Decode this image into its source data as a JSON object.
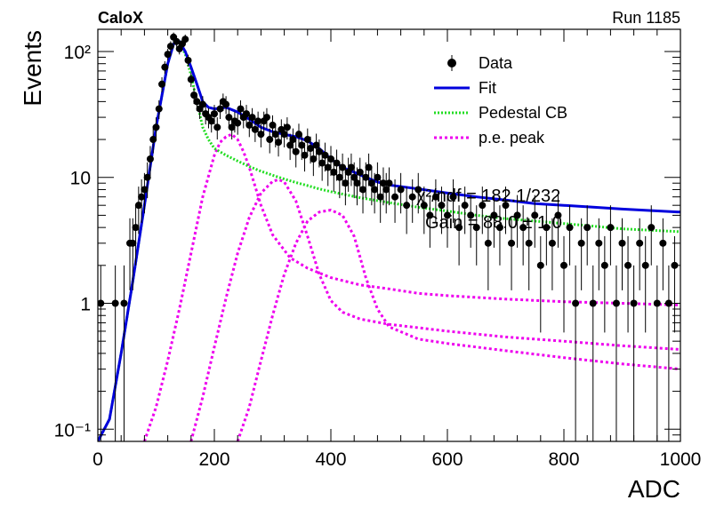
{
  "chart_data": {
    "type": "scatter",
    "title": "",
    "experiment_label": "CaloX",
    "run_label": "Run 1185",
    "xlabel": "ADC",
    "ylabel": "Events",
    "xlim": [
      0,
      1000
    ],
    "ylim": [
      0.08,
      150
    ],
    "yscale": "log",
    "grid": false,
    "legend_position": "top-right",
    "x_ticks": [
      0,
      200,
      400,
      600,
      800,
      1000
    ],
    "y_ticks": [
      {
        "value": 0.1,
        "label": "10⁻¹"
      },
      {
        "value": 1,
        "label": "1"
      },
      {
        "value": 10,
        "label": "10"
      },
      {
        "value": 100,
        "label": "10²"
      }
    ],
    "annotations": [
      "χ²/ndf = 182.1/232",
      "Gain = 88.0 ± 1.0"
    ],
    "colors": {
      "data": "#000000",
      "fit": "#0000dd",
      "pedestal": "#22dd22",
      "pe_peak": "#ee00ee"
    },
    "series": [
      {
        "name": "Data",
        "kind": "points",
        "x": [
          5,
          30,
          45,
          55,
          60,
          65,
          70,
          75,
          80,
          85,
          90,
          95,
          100,
          105,
          110,
          115,
          120,
          125,
          130,
          135,
          140,
          145,
          150,
          155,
          160,
          165,
          170,
          175,
          180,
          185,
          190,
          195,
          200,
          205,
          210,
          215,
          220,
          225,
          230,
          235,
          240,
          245,
          250,
          255,
          260,
          265,
          270,
          275,
          280,
          285,
          290,
          295,
          300,
          305,
          310,
          315,
          320,
          325,
          330,
          335,
          340,
          345,
          350,
          355,
          360,
          365,
          370,
          375,
          380,
          385,
          390,
          395,
          400,
          405,
          410,
          415,
          420,
          425,
          430,
          435,
          440,
          445,
          450,
          455,
          460,
          465,
          470,
          475,
          480,
          485,
          490,
          495,
          500,
          510,
          520,
          530,
          540,
          550,
          560,
          570,
          580,
          590,
          600,
          610,
          620,
          630,
          640,
          650,
          660,
          670,
          680,
          690,
          700,
          710,
          720,
          730,
          740,
          750,
          760,
          770,
          780,
          790,
          800,
          810,
          820,
          830,
          840,
          850,
          860,
          870,
          880,
          890,
          900,
          910,
          920,
          930,
          940,
          950,
          960,
          970,
          980,
          990
        ],
        "y": [
          1,
          1,
          1,
          3,
          3,
          4,
          6,
          7,
          8,
          10,
          14,
          20,
          25,
          35,
          55,
          75,
          95,
          110,
          130,
          120,
          105,
          115,
          125,
          85,
          60,
          45,
          40,
          35,
          38,
          32,
          30,
          28,
          32,
          25,
          35,
          40,
          38,
          30,
          25,
          28,
          27,
          35,
          30,
          32,
          26,
          30,
          24,
          28,
          22,
          28,
          30,
          20,
          26,
          22,
          19,
          24,
          22,
          25,
          18,
          20,
          16,
          22,
          18,
          15,
          20,
          17,
          14,
          18,
          16,
          13,
          15,
          12,
          14,
          11,
          13,
          10,
          12,
          9,
          11,
          12,
          10,
          9,
          11,
          8,
          10,
          12,
          9,
          8,
          10,
          7,
          9,
          8,
          9,
          7,
          8,
          6,
          7,
          8,
          6,
          5,
          7,
          6,
          5,
          7,
          4,
          6,
          5,
          4,
          6,
          3,
          5,
          4,
          6,
          3,
          5,
          4,
          3,
          5,
          2,
          4,
          3,
          5,
          2,
          4,
          1,
          3,
          4,
          1,
          3,
          2,
          4,
          1,
          3,
          2,
          1,
          3,
          2,
          4,
          1,
          3,
          1,
          2
        ]
      },
      {
        "name": "Fit",
        "kind": "line",
        "x": [
          0,
          20,
          40,
          60,
          80,
          100,
          120,
          130,
          140,
          150,
          160,
          170,
          180,
          190,
          200,
          220,
          240,
          260,
          280,
          300,
          320,
          340,
          360,
          380,
          400,
          420,
          440,
          460,
          480,
          500,
          550,
          600,
          650,
          700,
          750,
          800,
          850,
          900,
          950,
          1000
        ],
        "y": [
          0.08,
          0.12,
          0.4,
          1.5,
          6,
          25,
          80,
          115,
          120,
          100,
          75,
          55,
          40,
          36,
          35,
          36,
          33,
          29,
          25,
          23,
          22,
          21,
          19.5,
          17,
          14,
          12,
          11,
          10,
          9.2,
          8.7,
          8.1,
          7.5,
          7,
          6.6,
          6.2,
          6,
          5.8,
          5.6,
          5.45,
          5.3
        ]
      },
      {
        "name": "Pedestal CB",
        "kind": "line",
        "x": [
          0,
          20,
          40,
          60,
          80,
          100,
          120,
          130,
          140,
          150,
          160,
          170,
          180,
          190,
          200,
          220,
          240,
          260,
          280,
          300,
          320,
          340,
          360,
          380,
          400,
          450,
          500,
          550,
          600,
          650,
          700,
          750,
          800,
          850,
          900,
          950,
          1000
        ],
        "y": [
          0.08,
          0.12,
          0.4,
          1.5,
          6,
          25,
          80,
          115,
          120,
          95,
          65,
          40,
          25,
          20,
          17,
          15,
          13.5,
          12.2,
          11.2,
          10.4,
          9.7,
          9.1,
          8.6,
          8.1,
          7.7,
          6.9,
          6.3,
          5.8,
          5.4,
          5,
          4.7,
          4.5,
          4.3,
          4.1,
          3.9,
          3.8,
          3.7
        ]
      },
      {
        "name": "p.e. peak",
        "kind": "line",
        "x": [
          80,
          100,
          120,
          140,
          160,
          180,
          200,
          210,
          220,
          230,
          240,
          250,
          260,
          280,
          300,
          330,
          360,
          400,
          450,
          500,
          550,
          600,
          700,
          800,
          900,
          1000
        ],
        "y": [
          0.08,
          0.15,
          0.35,
          0.9,
          2.5,
          7,
          15,
          19,
          21,
          22,
          20,
          16,
          12,
          6,
          3.5,
          2.3,
          1.9,
          1.6,
          1.4,
          1.3,
          1.2,
          1.15,
          1.08,
          1.03,
          1.0,
          0.97
        ]
      },
      {
        "name": "p.e. peak 2",
        "kind": "line",
        "legend": false,
        "x": [
          160,
          180,
          200,
          220,
          240,
          260,
          280,
          300,
          310,
          320,
          340,
          360,
          380,
          400,
          420,
          450,
          500,
          550,
          600,
          700,
          800,
          900,
          1000
        ],
        "y": [
          0.08,
          0.18,
          0.45,
          1.1,
          2.5,
          4.8,
          7.5,
          9.3,
          9.6,
          9.2,
          6.5,
          3.4,
          1.7,
          1.05,
          0.85,
          0.75,
          0.68,
          0.64,
          0.6,
          0.54,
          0.5,
          0.46,
          0.43
        ]
      },
      {
        "name": "p.e. peak 3",
        "kind": "line",
        "legend": false,
        "x": [
          240,
          260,
          280,
          300,
          320,
          340,
          360,
          380,
          400,
          420,
          440,
          460,
          480,
          500,
          550,
          600,
          700,
          800,
          900,
          1000
        ],
        "y": [
          0.08,
          0.15,
          0.35,
          0.8,
          1.7,
          3,
          4.5,
          5.3,
          5.5,
          5,
          3.4,
          1.6,
          0.9,
          0.65,
          0.52,
          0.48,
          0.42,
          0.37,
          0.33,
          0.3
        ]
      }
    ],
    "legend": [
      {
        "label": "Data",
        "marker": "point"
      },
      {
        "label": "Fit",
        "marker": "line"
      },
      {
        "label": "Pedestal CB",
        "marker": "dotted-line"
      },
      {
        "label": "p.e. peak",
        "marker": "dotted-line"
      }
    ]
  }
}
